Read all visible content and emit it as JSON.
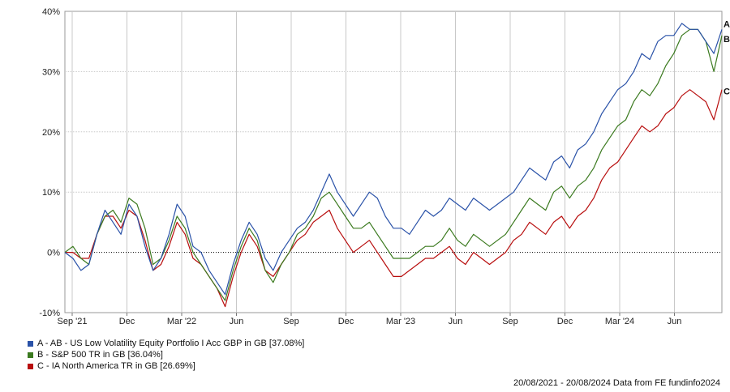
{
  "chart_data": {
    "type": "line",
    "y_axis": {
      "min": -10,
      "max": 40,
      "step": 10,
      "tick_labels": [
        "40%",
        "30%",
        "20%",
        "10%",
        "0%",
        "-10%"
      ]
    },
    "x_axis": {
      "tick_labels": [
        "Sep '21",
        "Dec",
        "Mar '22",
        "Jun",
        "Sep",
        "Dec",
        "Mar '23",
        "Jun",
        "Sep",
        "Dec",
        "Mar '24",
        "Jun"
      ]
    },
    "grid": true,
    "zero_line": "dotted",
    "legend_placement": "bottom-left",
    "series": [
      {
        "key": "A",
        "name": "A - AB - US Low Volatility Equity Portfolio I Acc GBP in GB [37.08%]",
        "color": "#2a52a8",
        "end_label": "A",
        "values": [
          0,
          -1,
          -3,
          -2,
          3,
          7,
          5,
          3,
          8,
          6,
          1,
          -3,
          -1,
          3,
          8,
          6,
          1,
          0,
          -3,
          -5,
          -7,
          -2,
          2,
          5,
          3,
          -1,
          -3,
          0,
          2,
          4,
          5,
          7,
          10,
          13,
          10,
          8,
          6,
          8,
          10,
          9,
          6,
          4,
          4,
          3,
          5,
          7,
          6,
          7,
          9,
          8,
          7,
          9,
          8,
          7,
          8,
          9,
          10,
          12,
          14,
          13,
          12,
          15,
          16,
          14,
          17,
          18,
          20,
          23,
          25,
          27,
          28,
          30,
          33,
          32,
          35,
          36,
          36,
          38,
          37,
          37,
          35,
          33,
          37
        ]
      },
      {
        "key": "B",
        "name": "B - S&P 500 TR in GB [36.04%]",
        "color": "#3b7a1f",
        "end_label": "B",
        "values": [
          0,
          1,
          -1,
          -2,
          3,
          6,
          7,
          5,
          9,
          8,
          4,
          -2,
          -1,
          2,
          6,
          4,
          0,
          -2,
          -4,
          -6,
          -8,
          -3,
          1,
          4,
          2,
          -3,
          -5,
          -2,
          0,
          3,
          4,
          6,
          9,
          10,
          8,
          6,
          4,
          4,
          5,
          3,
          1,
          -1,
          -1,
          -1,
          0,
          1,
          1,
          2,
          4,
          2,
          1,
          3,
          2,
          1,
          2,
          3,
          5,
          7,
          9,
          8,
          7,
          10,
          11,
          9,
          11,
          12,
          14,
          17,
          19,
          21,
          22,
          25,
          27,
          26,
          28,
          31,
          33,
          36,
          37,
          37,
          35,
          30,
          36
        ]
      },
      {
        "key": "C",
        "name": "C - IA North America TR in GB [26.69%]",
        "color": "#b80e0e",
        "end_label": "C",
        "values": [
          0,
          0,
          -1,
          -1,
          3,
          6,
          6,
          4,
          7,
          6,
          2,
          -3,
          -2,
          1,
          5,
          3,
          -1,
          -2,
          -4,
          -6,
          -9,
          -4,
          0,
          3,
          1,
          -3,
          -4,
          -2,
          0,
          2,
          3,
          5,
          6,
          7,
          4,
          2,
          0,
          1,
          2,
          0,
          -2,
          -4,
          -4,
          -3,
          -2,
          -1,
          -1,
          0,
          1,
          -1,
          -2,
          0,
          -1,
          -2,
          -1,
          0,
          2,
          3,
          5,
          4,
          3,
          5,
          6,
          4,
          6,
          7,
          9,
          12,
          14,
          15,
          17,
          19,
          21,
          20,
          21,
          23,
          24,
          26,
          27,
          26,
          25,
          22,
          27
        ]
      }
    ]
  },
  "legend": {
    "a": "A - AB - US Low Volatility Equity Portfolio I Acc GBP in GB [37.08%]",
    "b": "B - S&P 500 TR in GB [36.04%]",
    "c": "C - IA North America TR in GB [26.69%]"
  },
  "footer": "20/08/2021 - 20/08/2024 Data from FE fundinfo2024"
}
